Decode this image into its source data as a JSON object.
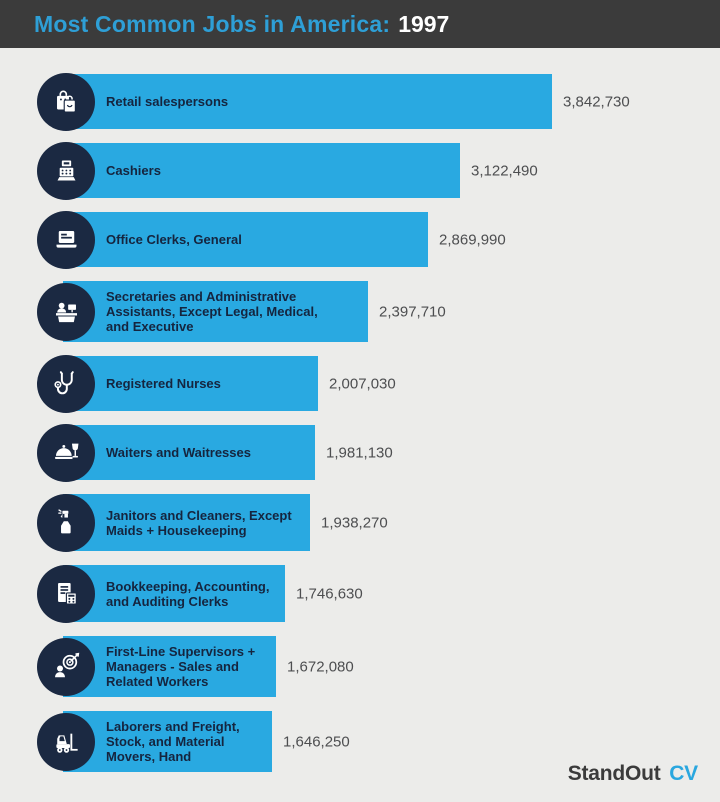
{
  "header": {
    "title_prefix": "Most Common Jobs in America:",
    "year": "1997"
  },
  "footer": {
    "brand_dark": "StandOut",
    "brand_accent": "CV"
  },
  "colors": {
    "header_bg": "#3B3B3B",
    "title_blue": "#2E9FD6",
    "bar_blue": "#29A9E1",
    "icon_circle_navy": "#1B2942",
    "label_navy": "#15253F",
    "value_gray": "#4D4E50",
    "page_bg": "#ECECEA"
  },
  "chart_data": {
    "type": "bar",
    "orientation": "horizontal",
    "title": "Most Common Jobs in America: 1997",
    "xlabel": "",
    "ylabel": "",
    "xlim": [
      0,
      4000000
    ],
    "grid": false,
    "legend": false,
    "bar_color": "#29A9E1",
    "categories": [
      "Retail salespersons",
      "Cashiers",
      "Office Clerks, General",
      "Secretaries and Administrative\nAssistants, Except Legal, Medical,\nand Executive",
      "Registered Nurses",
      "Waiters and Waitresses",
      "Janitors and Cleaners, Except\nMaids + Housekeeping",
      "Bookkeeping, Accounting,\nand Auditing Clerks",
      "First-Line Supervisors +\nManagers - Sales and\nRelated Workers",
      "Laborers and Freight,\nStock, and Material\nMovers, Hand"
    ],
    "values": [
      3842730,
      3122490,
      2869990,
      2397710,
      2007030,
      1981130,
      1938270,
      1746630,
      1672080,
      1646250
    ],
    "value_labels": [
      "3,842,730",
      "3,122,490",
      "2,869,990",
      "2,397,710",
      "2,007,030",
      "1,981,130",
      "1,938,270",
      "1,746,630",
      "1,672,080",
      "1,646,250"
    ],
    "icons": [
      "shopping-bags-icon",
      "cash-register-icon",
      "laptop-icon",
      "reception-desk-icon",
      "stethoscope-icon",
      "cloche-wine-icon",
      "spray-bottle-icon",
      "ledger-calculator-icon",
      "target-person-icon",
      "forklift-icon"
    ]
  }
}
